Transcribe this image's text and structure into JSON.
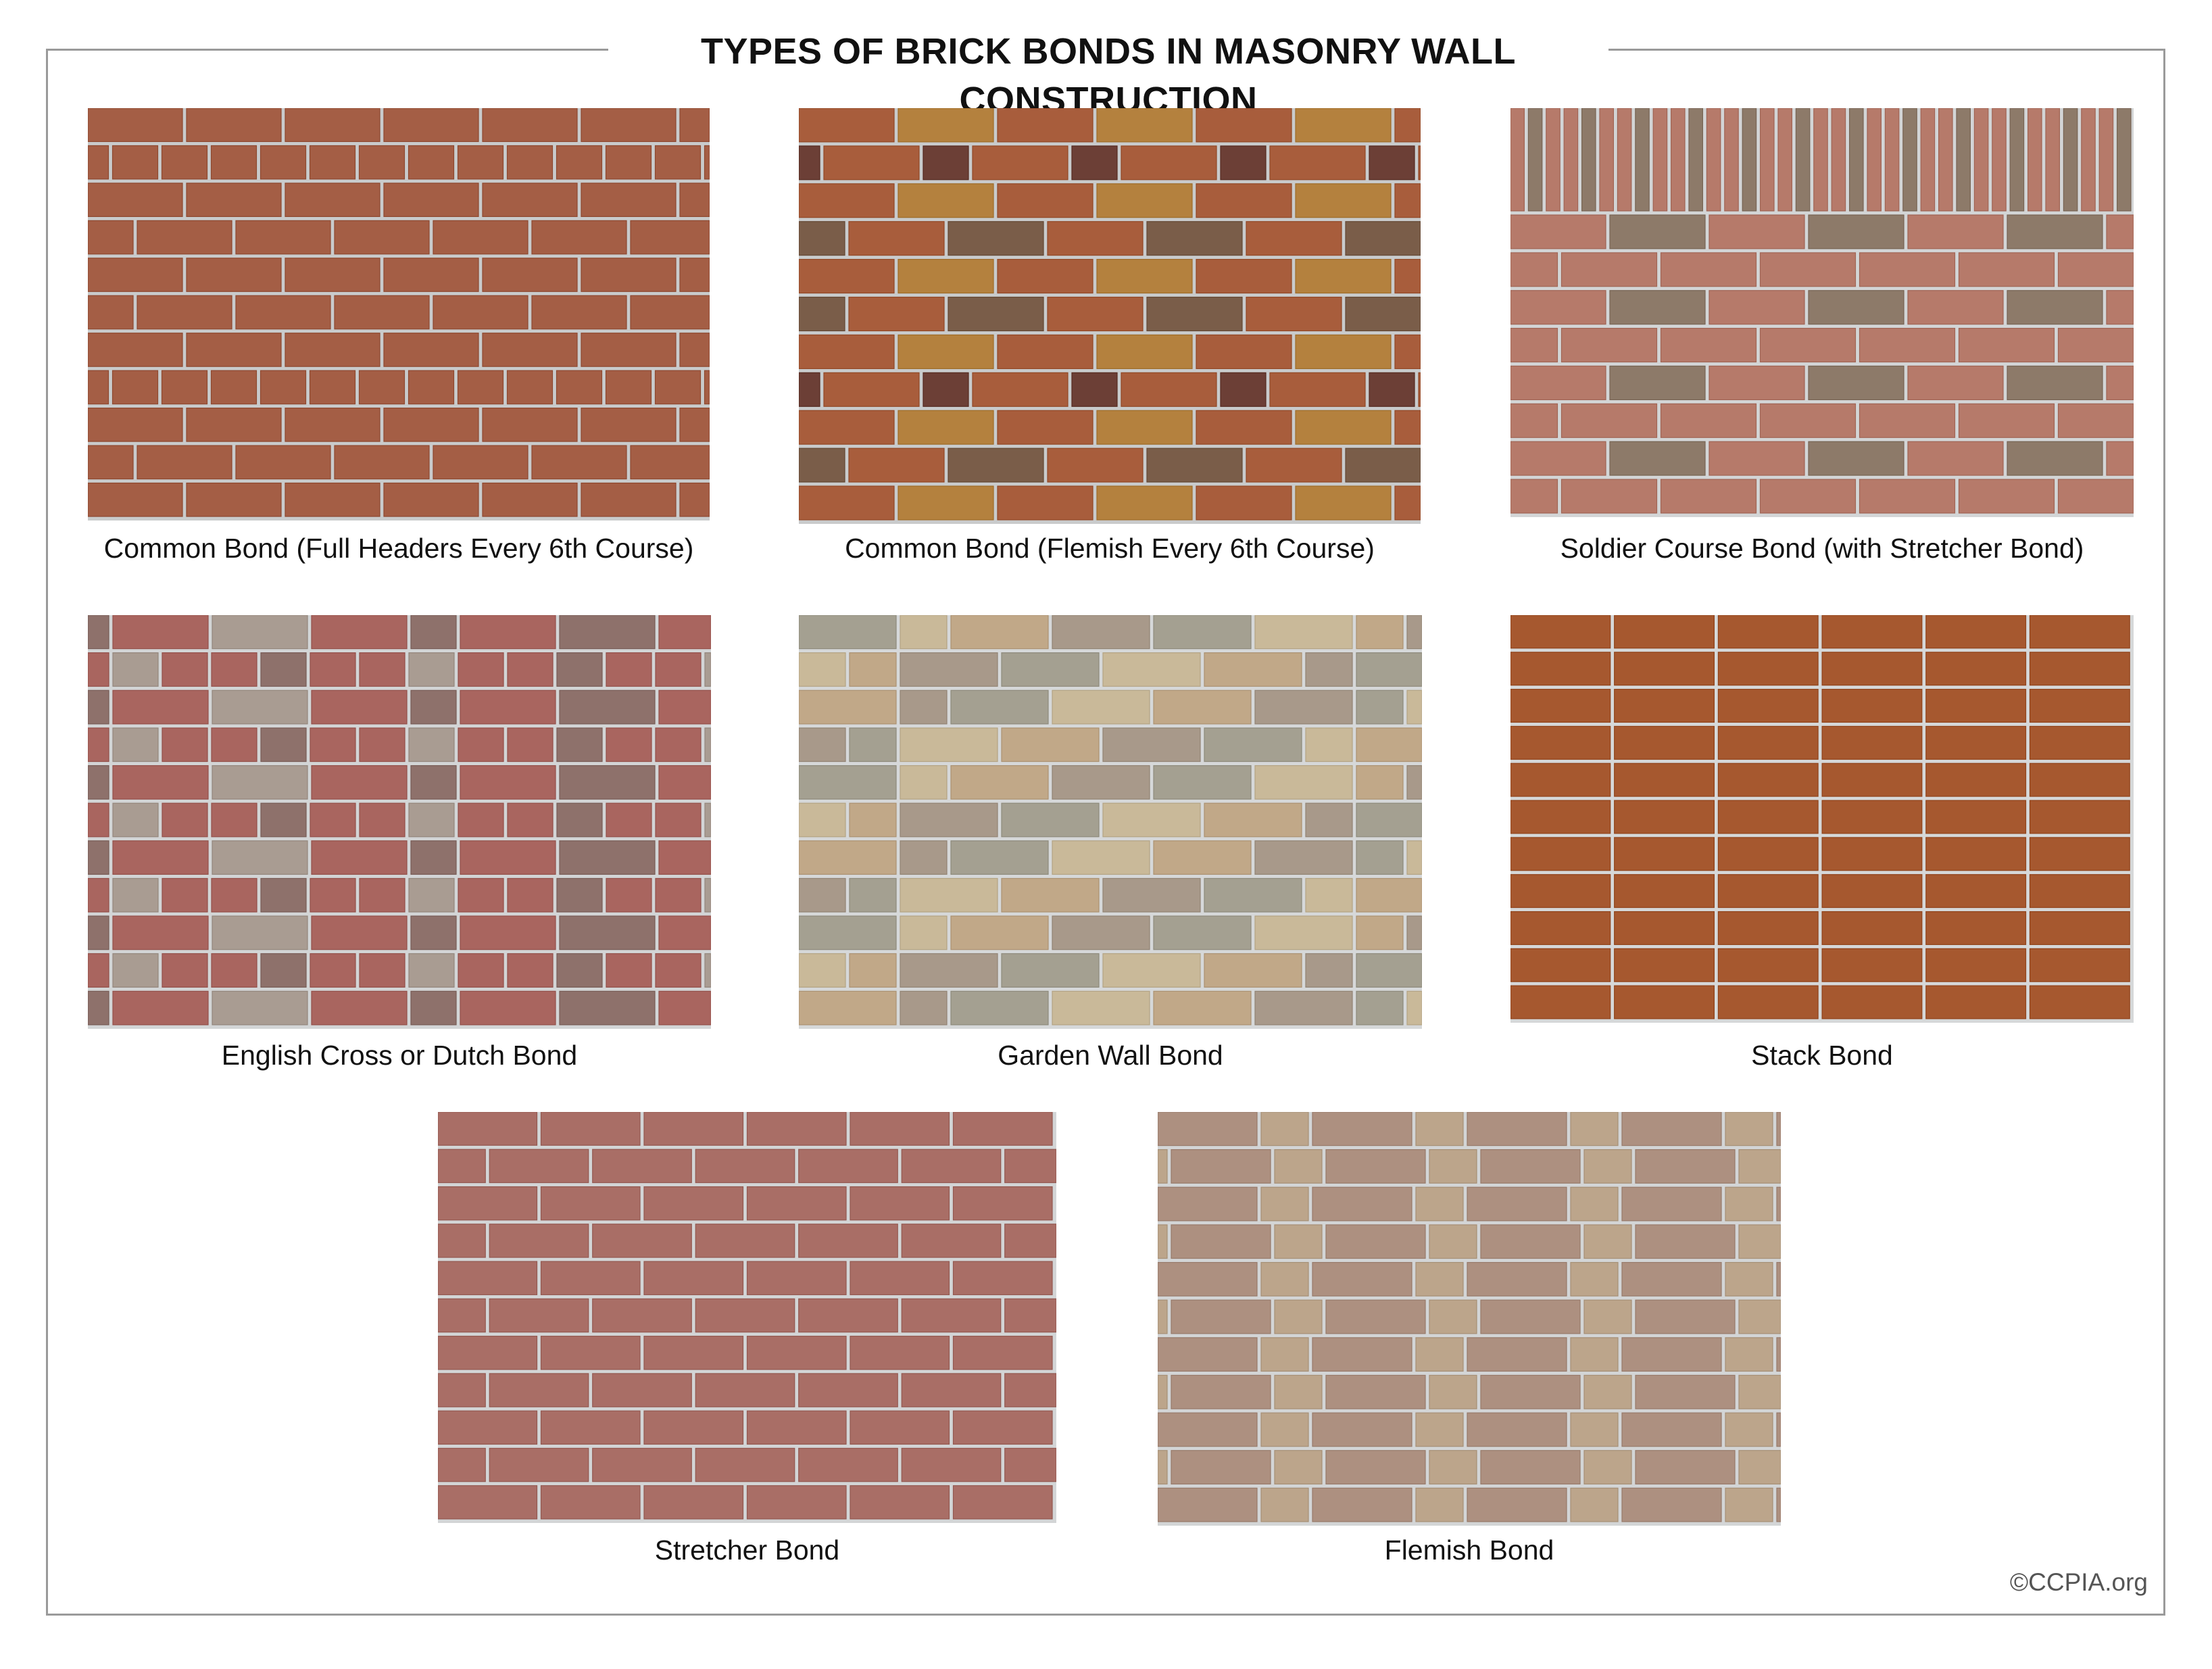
{
  "title": "TYPES OF BRICK BONDS IN MASONRY WALL CONSTRUCTION",
  "credit": "©CCPIA.org",
  "panels": [
    {
      "caption": "Common Bond (Full Headers Every 6th Course)",
      "bond": "common-headers",
      "palette": [
        "#a45e45"
      ],
      "mortar": "#c9cbcc"
    },
    {
      "caption": "Common Bond (Flemish Every 6th Course)",
      "bond": "common-flemish",
      "palette": [
        "#a85d3c",
        "#b4813e",
        "#7a5d49",
        "#6c3f36"
      ],
      "mortar": "#c9cbcc"
    },
    {
      "caption": "Soldier Course Bond (with Stretcher Bond)",
      "bond": "soldier",
      "palette": [
        "#b67a6a",
        "#8d7a69"
      ],
      "mortar": "#d3d5d6"
    },
    {
      "caption": "English Cross or Dutch Bond",
      "bond": "english-cross",
      "palette": [
        "#a9655f",
        "#a99c92",
        "#8e716b"
      ],
      "mortar": "#d3d5d6"
    },
    {
      "caption": "Garden Wall Bond",
      "bond": "garden-wall",
      "palette": [
        "#a4a091",
        "#c9b999",
        "#c1a888",
        "#a8998a"
      ],
      "mortar": "#d6d8d9"
    },
    {
      "caption": "Stack Bond",
      "bond": "stack",
      "palette": [
        "#a6582f"
      ],
      "mortar": "#d6d8d9"
    },
    {
      "caption": "Stretcher Bond",
      "bond": "stretcher",
      "palette": [
        "#a96e66"
      ],
      "mortar": "#d3d5d6"
    },
    {
      "caption": "Flemish Bond",
      "bond": "flemish",
      "palette": [
        "#ad9080",
        "#bca58b"
      ],
      "mortar": "#d3d5d6"
    }
  ]
}
